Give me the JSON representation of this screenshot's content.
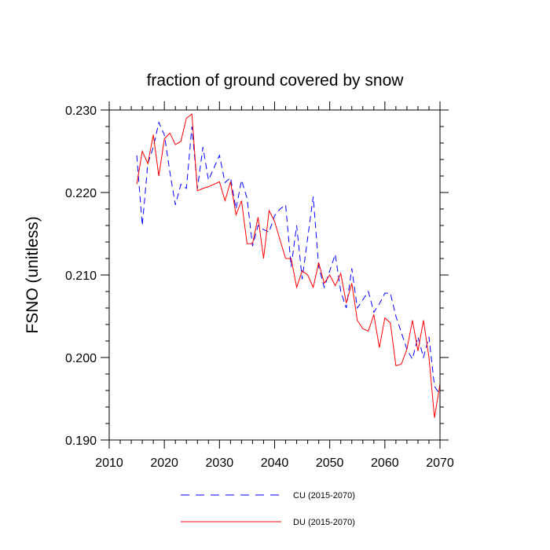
{
  "chart_data": {
    "type": "line",
    "title": "fraction of ground covered by snow",
    "xlabel": "",
    "ylabel": "FSNO  (unitless)",
    "xlim": [
      2010,
      2070
    ],
    "ylim": [
      0.19,
      0.23
    ],
    "xticks": [
      2010,
      2020,
      2030,
      2040,
      2050,
      2060,
      2070
    ],
    "xtick_labels": [
      "2010",
      "2020",
      "2030",
      "2040",
      "2050",
      "2060",
      "2070"
    ],
    "yticks": [
      0.19,
      0.2,
      0.21,
      0.22,
      0.23
    ],
    "ytick_labels": [
      "0.190",
      "0.200",
      "0.210",
      "0.220",
      "0.230"
    ],
    "x": [
      2015,
      2016,
      2017,
      2018,
      2019,
      2020,
      2021,
      2022,
      2023,
      2024,
      2025,
      2026,
      2027,
      2028,
      2029,
      2030,
      2031,
      2032,
      2033,
      2034,
      2035,
      2036,
      2037,
      2038,
      2039,
      2040,
      2041,
      2042,
      2043,
      2044,
      2045,
      2046,
      2047,
      2048,
      2049,
      2050,
      2051,
      2052,
      2053,
      2054,
      2055,
      2056,
      2057,
      2058,
      2059,
      2060,
      2061,
      2062,
      2063,
      2064,
      2065,
      2066,
      2067,
      2068,
      2069,
      2070
    ],
    "series": [
      {
        "name": "CU (2015-2070)",
        "color": "#0000ff",
        "dash": "dashed",
        "values": [
          0.2245,
          0.216,
          0.2235,
          0.2255,
          0.2285,
          0.227,
          0.2225,
          0.2185,
          0.221,
          0.2205,
          0.228,
          0.2205,
          0.2255,
          0.2215,
          0.223,
          0.2245,
          0.2212,
          0.2218,
          0.218,
          0.2215,
          0.2193,
          0.2135,
          0.216,
          0.2155,
          0.2152,
          0.2172,
          0.218,
          0.2185,
          0.211,
          0.216,
          0.2095,
          0.2145,
          0.2195,
          0.211,
          0.2085,
          0.2105,
          0.2125,
          0.208,
          0.206,
          0.2108,
          0.206,
          0.207,
          0.208,
          0.2055,
          0.2065,
          0.2078,
          0.2078,
          0.205,
          0.203,
          0.201,
          0.1998,
          0.2025,
          0.2,
          0.2025,
          0.1965,
          0.1955
        ]
      },
      {
        "name": "DU (2015-2070)",
        "color": "#ff0000",
        "dash": "solid",
        "values": [
          0.221,
          0.225,
          0.2235,
          0.227,
          0.222,
          0.2265,
          0.2272,
          0.2258,
          0.2262,
          0.229,
          0.2295,
          0.2202,
          0.2205,
          0.2207,
          0.221,
          0.2213,
          0.219,
          0.2213,
          0.2173,
          0.219,
          0.2138,
          0.2138,
          0.217,
          0.212,
          0.2178,
          0.2165,
          0.2142,
          0.212,
          0.212,
          0.2085,
          0.2105,
          0.21,
          0.2085,
          0.2115,
          0.209,
          0.21,
          0.2087,
          0.2102,
          0.2066,
          0.209,
          0.2045,
          0.2035,
          0.2032,
          0.2052,
          0.2012,
          0.2048,
          0.2042,
          0.199,
          0.1992,
          0.201,
          0.2045,
          0.2008,
          0.2045,
          0.2,
          0.1927,
          0.1968
        ]
      }
    ],
    "legend": {
      "placement": "bottom",
      "entries": [
        {
          "label": "CU (2015-2070)",
          "color": "#0000ff",
          "dash": "dashed"
        },
        {
          "label": "DU (2015-2070)",
          "color": "#ff0000",
          "dash": "solid"
        }
      ]
    },
    "grid": false
  }
}
